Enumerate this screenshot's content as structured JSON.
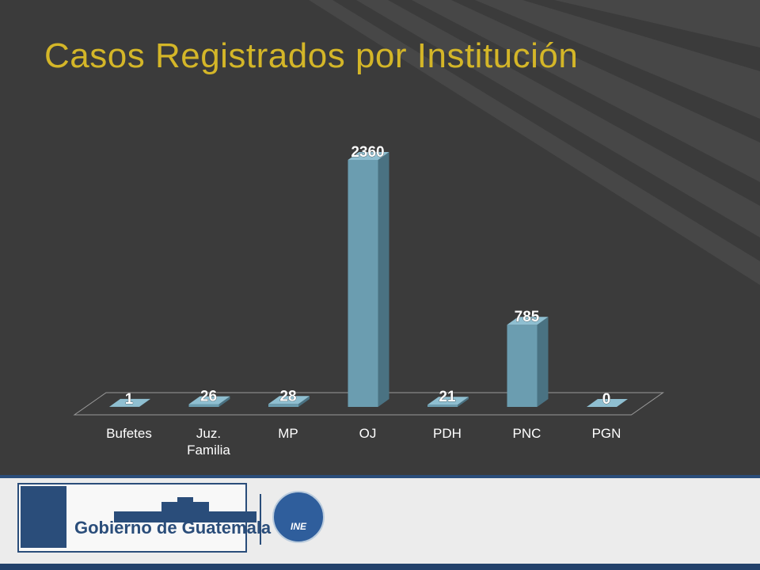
{
  "title": "Casos Registrados por Institución",
  "chart_data": {
    "type": "bar",
    "title": "Casos Registrados por Institución",
    "categories": [
      "Bufetes",
      "Juz. Familia",
      "MP",
      "OJ",
      "PDH",
      "PNC",
      "PGN"
    ],
    "category_lines": [
      [
        "Bufetes"
      ],
      [
        "Juz.",
        "Familia"
      ],
      [
        "MP"
      ],
      [
        "OJ"
      ],
      [
        "PDH"
      ],
      [
        "PNC"
      ],
      [
        "PGN"
      ]
    ],
    "values": [
      1,
      26,
      28,
      2360,
      21,
      785,
      0
    ],
    "xlabel": "",
    "ylabel": "",
    "ylim": [
      0,
      2360
    ],
    "grid": false,
    "legend": false,
    "three_d": true,
    "colors": {
      "bar_front": "#6b9db0",
      "bar_side": "#4a7282",
      "bar_top": "#8fbfd1",
      "label": "#ffffff",
      "tick": "#ffffff"
    }
  },
  "footer": {
    "gov_text": "Gobierno de Guatemala",
    "ine_text": "INE"
  }
}
